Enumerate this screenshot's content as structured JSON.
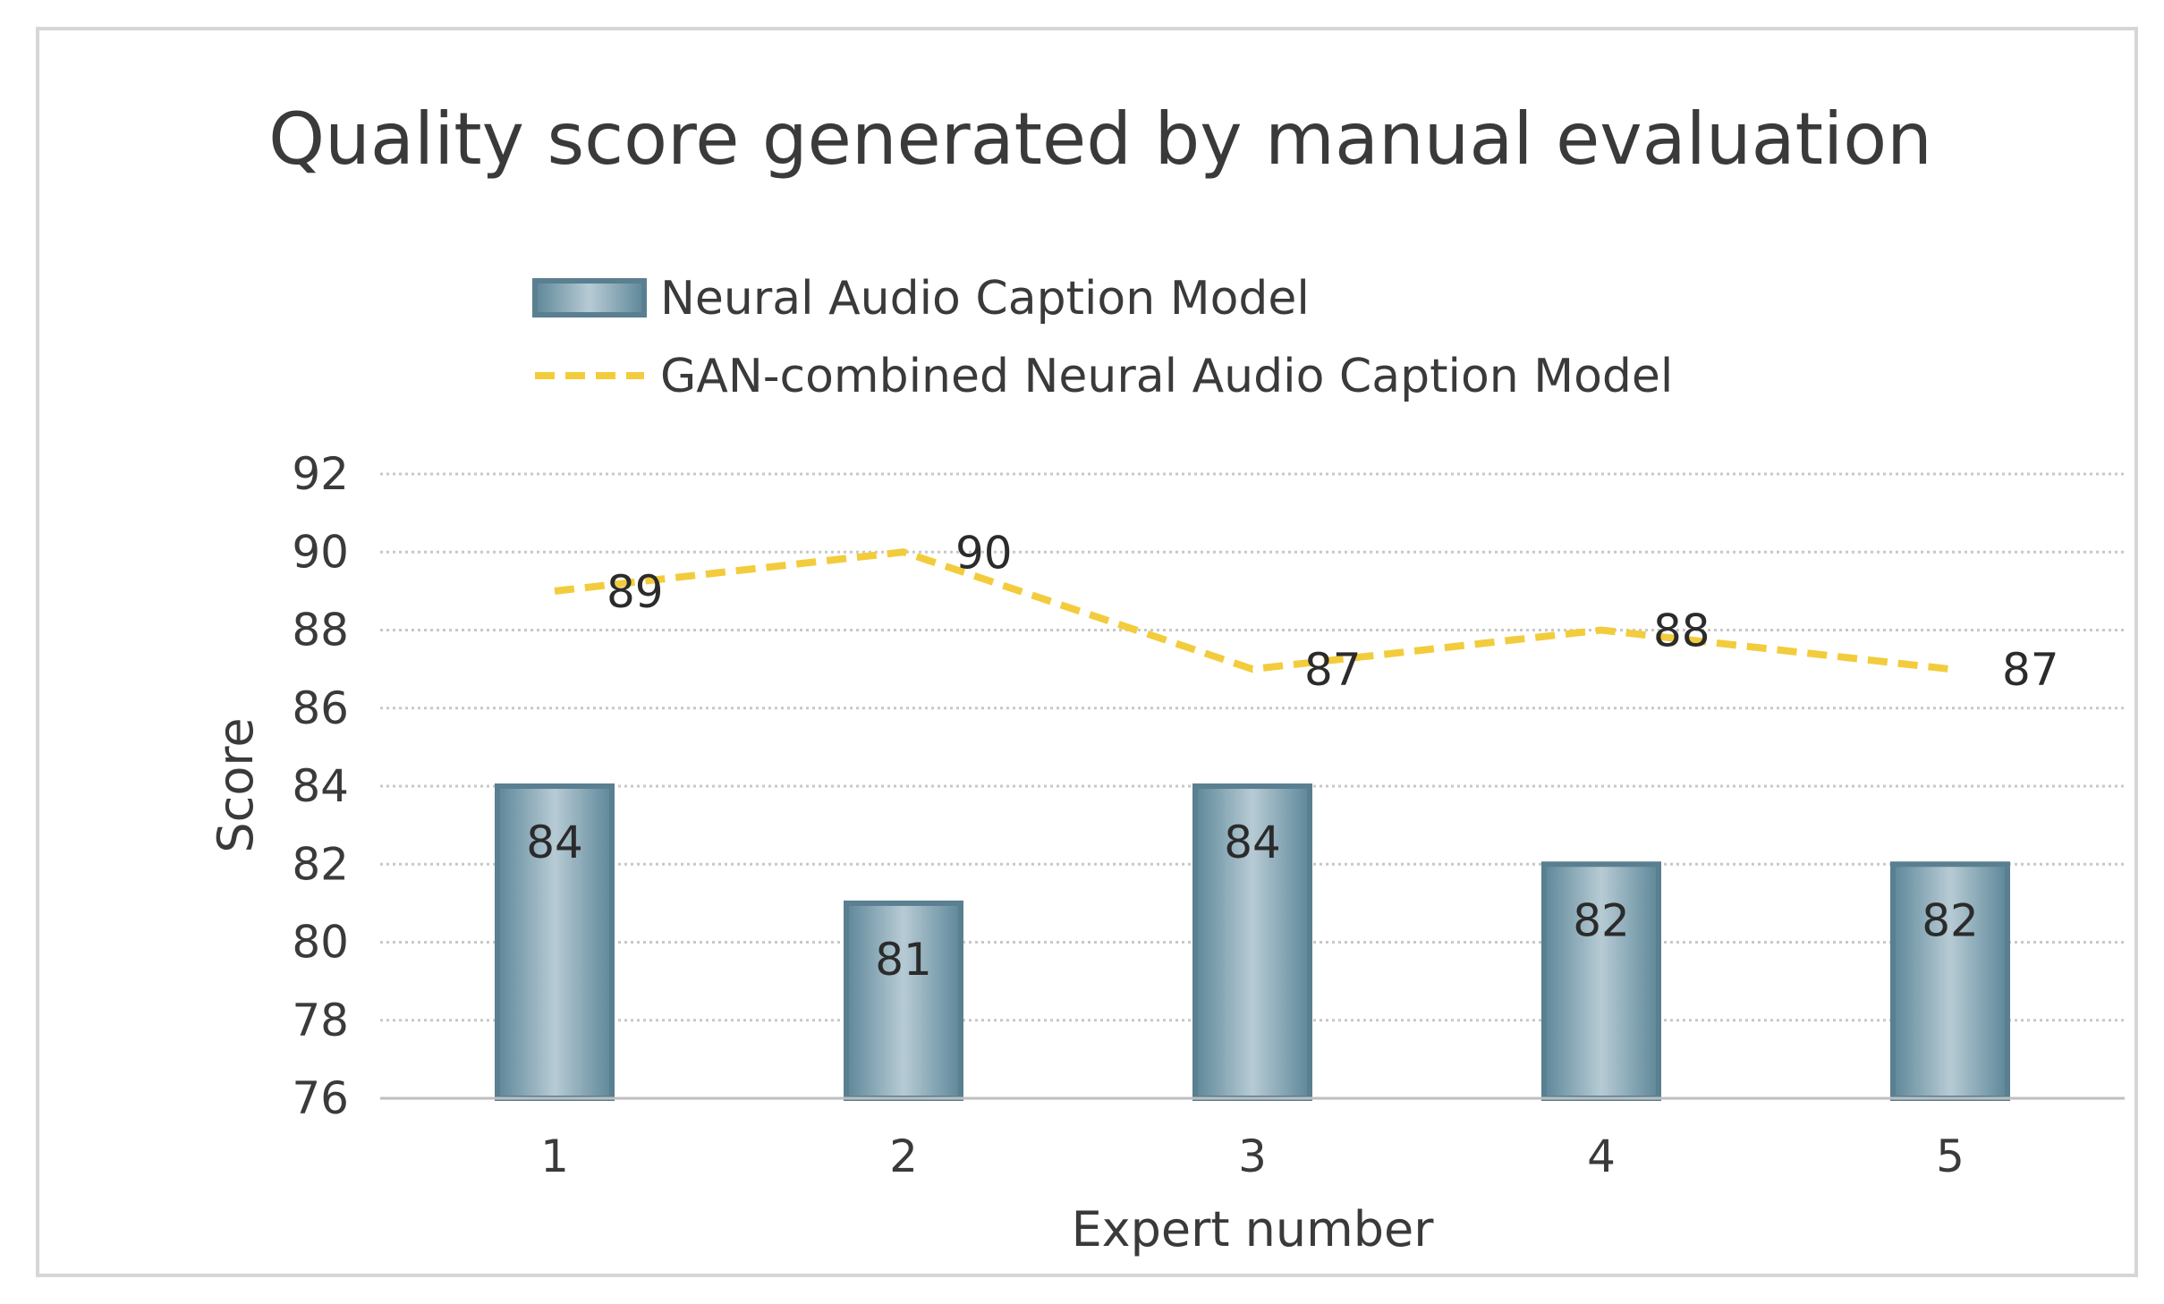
{
  "chart_data": {
    "type": "bar",
    "title": "Quality score generated by manual evaluation",
    "xlabel": "Expert number",
    "ylabel": "Score",
    "categories": [
      "1",
      "2",
      "3",
      "4",
      "5"
    ],
    "ylim": [
      76,
      92
    ],
    "yticks": [
      76,
      78,
      80,
      82,
      84,
      86,
      88,
      90,
      92
    ],
    "grid": true,
    "legend_position": "top",
    "series": [
      {
        "name": "Neural Audio Caption Model",
        "kind": "bar",
        "values": [
          84,
          81,
          84,
          82,
          82
        ],
        "color": "#6e97a8",
        "edge_color": "#5a7f90"
      },
      {
        "name": "GAN-combined Neural Audio Caption Model",
        "kind": "line",
        "style": "dashed",
        "values": [
          89,
          90,
          87,
          88,
          87
        ],
        "color": "#f2cc3c"
      }
    ]
  }
}
